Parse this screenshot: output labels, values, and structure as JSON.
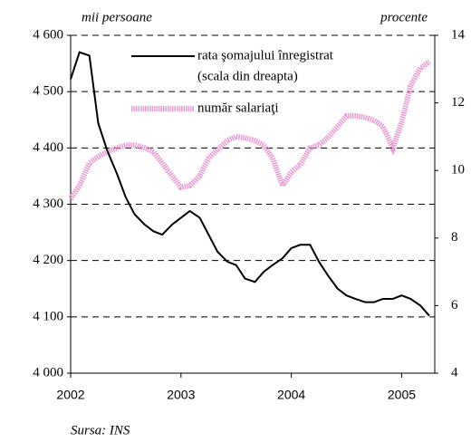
{
  "chart_data": {
    "type": "line",
    "y_label": "mii persoane",
    "y2_label": "procente",
    "source": "Sursa: INS",
    "legend_note": "(scala din dreapta)",
    "x": [
      2002,
      2002.08,
      2002.17,
      2002.25,
      2002.33,
      2002.42,
      2002.5,
      2002.58,
      2002.67,
      2002.75,
      2002.83,
      2002.92,
      2003,
      2003.08,
      2003.17,
      2003.25,
      2003.33,
      2003.42,
      2003.5,
      2003.58,
      2003.67,
      2003.75,
      2003.83,
      2003.92,
      2004,
      2004.08,
      2004.17,
      2004.25,
      2004.33,
      2004.42,
      2004.5,
      2004.58,
      2004.67,
      2004.75,
      2004.83,
      2004.92,
      2005,
      2005.08,
      2005.17,
      2005.25
    ],
    "series": [
      {
        "name": "rata şomajului înregistrat",
        "color": "#000000",
        "axis": "y2",
        "values": [
          12.7,
          13.5,
          13.4,
          11.4,
          10.6,
          9.9,
          9.2,
          8.7,
          8.4,
          8.2,
          8.1,
          8.4,
          8.6,
          8.8,
          8.6,
          8.1,
          7.6,
          7.3,
          7.2,
          6.8,
          6.7,
          7.0,
          7.2,
          7.4,
          7.7,
          7.8,
          7.8,
          7.3,
          6.9,
          6.5,
          6.3,
          6.2,
          6.1,
          6.1,
          6.2,
          6.2,
          6.3,
          6.2,
          6.0,
          5.7
        ]
      },
      {
        "name": "număr salariaţi",
        "color": "#e89ad4",
        "values": [
          4310,
          4333,
          4373,
          4385,
          4393,
          4400,
          4405,
          4405,
          4400,
          4393,
          4373,
          4350,
          4330,
          4333,
          4350,
          4382,
          4397,
          4413,
          4420,
          4418,
          4413,
          4405,
          4382,
          4333,
          4357,
          4370,
          4400,
          4405,
          4418,
          4438,
          4457,
          4457,
          4454,
          4449,
          4438,
          4400,
          4446,
          4510,
          4542,
          4553
        ]
      }
    ],
    "xlim": [
      2002,
      2005.3
    ],
    "xticks": [
      2002,
      2003,
      2004,
      2005
    ],
    "ylim": [
      4000,
      4600
    ],
    "yticks": [
      {
        "value": 4000,
        "label": "4 000"
      },
      {
        "value": 4100,
        "label": "4 100"
      },
      {
        "value": 4200,
        "label": "4 200"
      },
      {
        "value": 4300,
        "label": "4 300"
      },
      {
        "value": 4400,
        "label": "4 400"
      },
      {
        "value": 4500,
        "label": "4 500"
      },
      {
        "value": 4600,
        "label": "4 600"
      }
    ],
    "y2lim": [
      4,
      14
    ],
    "y2ticks": [
      4,
      6,
      8,
      10,
      12,
      14
    ],
    "grid": true
  }
}
